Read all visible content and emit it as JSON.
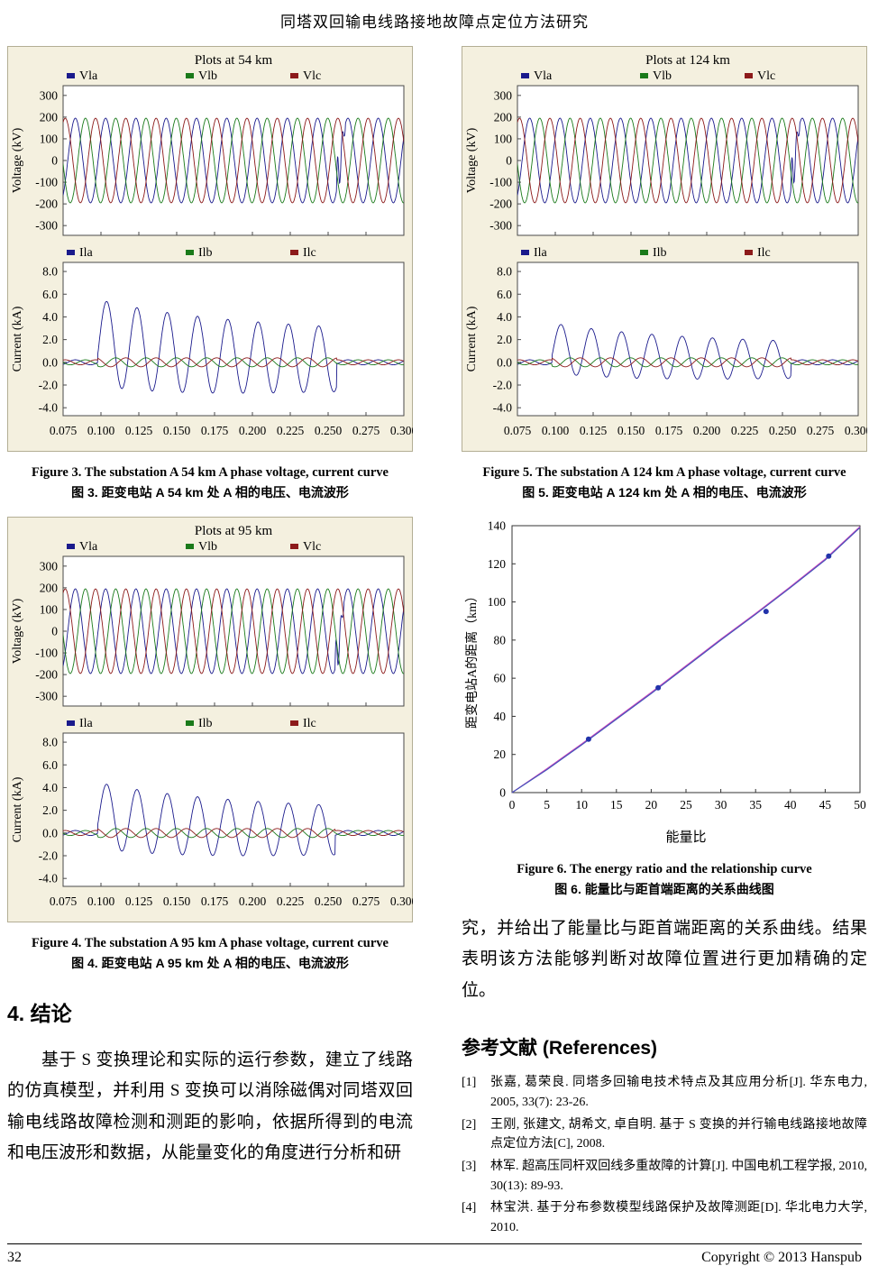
{
  "page": {
    "header_title": "同塔双回输电线路接地故障点定位方法研究",
    "footer": {
      "page_number": "32",
      "copyright": "Copyright © 2013 Hanspub"
    }
  },
  "figures": {
    "fig3": {
      "caption_en": "Figure 3. The substation A 54 km A phase voltage, current curve",
      "caption_zh": "图 3.  距变电站 A 54 km 处 A 相的电压、电流波形"
    },
    "fig4": {
      "caption_en": "Figure 4. The substation A 95 km A phase voltage, current curve",
      "caption_zh": "图 4.  距变电站 A 95 km 处 A 相的电压、电流波形"
    },
    "fig5": {
      "caption_en": "Figure 5. The substation A 124 km A phase voltage, current curve",
      "caption_zh": "图 5.  距变电站 A 124 km 处 A 相的电压、电流波形"
    },
    "fig6": {
      "caption_en": "Figure 6. The energy ratio and the relationship curve",
      "caption_zh": "图 6.  能量比与距首端距离的关系曲线图"
    }
  },
  "sections": {
    "conclusion": {
      "heading": "4. 结论",
      "paragraph_left": "基于 S 变换理论和实际的运行参数，建立了线路的仿真模型，并利用 S 变换可以消除磁偶对同塔双回输电线路故障检测和测距的影响，依据所得到的电流和电压波形和数据，从能量变化的角度进行分析和研",
      "paragraph_right": "究，并给出了能量比与距首端距离的关系曲线。结果表明该方法能够判断对故障位置进行更加精确的定位。"
    },
    "references": {
      "heading": "参考文献  (References)",
      "items": [
        {
          "label": "[1]",
          "text": "张嘉, 葛荣良. 同塔多回输电技术特点及其应用分析[J]. 华东电力, 2005, 33(7): 23-26."
        },
        {
          "label": "[2]",
          "text": "王刚, 张建文, 胡希文, 卓自明. 基于 S 变换的并行输电线路接地故障点定位方法[C], 2008."
        },
        {
          "label": "[3]",
          "text": "林军. 超高压同杆双回线多重故障的计算[J]. 中国电机工程学报, 2010, 30(13): 89-93."
        },
        {
          "label": "[4]",
          "text": "林宝洪. 基于分布参数模型线路保护及故障测距[D]. 华北电力大学, 2010."
        }
      ]
    }
  },
  "chart_data": [
    {
      "id": "fig3",
      "type": "line",
      "chart_kind": "waveform",
      "title": "Plots at 54 km",
      "background": "#f4f0df",
      "x_range": [
        0.075,
        0.3
      ],
      "x_tick_labels": [
        "0.075",
        "0.100",
        "0.125",
        "0.150",
        "0.175",
        "0.200",
        "0.225",
        "0.250",
        "0.275",
        "0.300"
      ],
      "panels": [
        {
          "ylabel": "Voltage (kV)",
          "ylim": [
            -345,
            345
          ],
          "yticks": [
            300,
            200,
            100,
            0,
            -100,
            -200,
            -300
          ],
          "ytick_labels": [
            "300",
            "200",
            "100",
            "0",
            "-100",
            "-200",
            "-300"
          ],
          "legend": [
            {
              "label": "Vla",
              "color": "#1a1a8c"
            },
            {
              "label": "Vlb",
              "color": "#1a7a1a"
            },
            {
              "label": "Vlc",
              "color": "#8c1a1a"
            }
          ],
          "signal": {
            "kind": "three_phase_voltage",
            "amplitude": 195,
            "frequency": 50,
            "spike_time": 0.2555,
            "spike_amp": 155
          }
        },
        {
          "ylabel": "Current (kA)",
          "ylim": [
            -4.7,
            8.8
          ],
          "yticks": [
            8,
            6,
            4,
            2,
            0,
            -2,
            -4
          ],
          "ytick_labels": [
            "8.0",
            "6.0",
            "4.0",
            "2.0",
            "0.0",
            "-2.0",
            "-4.0"
          ],
          "legend": [
            {
              "label": "Ila",
              "color": "#1a1a8c"
            },
            {
              "label": "Ilb",
              "color": "#1a7a1a"
            },
            {
              "label": "Ilc",
              "color": "#8c1a1a"
            }
          ],
          "signal": {
            "kind": "fault_current",
            "base_amplitude": 0.22,
            "fault_amplitude": 3.8,
            "dc_offset": 1.6,
            "fault_start": 0.098,
            "fault_end": 0.2555,
            "frequency": 50
          }
        }
      ]
    },
    {
      "id": "fig4",
      "type": "line",
      "chart_kind": "waveform",
      "title": "Plots at 95 km",
      "background": "#f4f0df",
      "x_range": [
        0.075,
        0.3
      ],
      "x_tick_labels": [
        "0.075",
        "0.100",
        "0.125",
        "0.150",
        "0.175",
        "0.200",
        "0.225",
        "0.250",
        "0.275",
        "0.300"
      ],
      "panels": [
        {
          "ylabel": "Voltage (kV)",
          "ylim": [
            -345,
            345
          ],
          "yticks": [
            300,
            200,
            100,
            0,
            -100,
            -200,
            -300
          ],
          "ytick_labels": [
            "300",
            "200",
            "100",
            "0",
            "-100",
            "-200",
            "-300"
          ],
          "legend": [
            {
              "label": "Vla",
              "color": "#1a1a8c"
            },
            {
              "label": "Vlb",
              "color": "#1a7a1a"
            },
            {
              "label": "Vlc",
              "color": "#8c1a1a"
            }
          ],
          "signal": {
            "kind": "three_phase_voltage",
            "amplitude": 195,
            "frequency": 50,
            "spike_time": 0.2545,
            "spike_amp": 140
          }
        },
        {
          "ylabel": "Current (kA)",
          "ylim": [
            -4.7,
            8.8
          ],
          "yticks": [
            8,
            6,
            4,
            2,
            0,
            -2,
            -4
          ],
          "ytick_labels": [
            "8.0",
            "6.0",
            "4.0",
            "2.0",
            "0.0",
            "-2.0",
            "-4.0"
          ],
          "legend": [
            {
              "label": "Ila",
              "color": "#1a1a8c"
            },
            {
              "label": "Ilb",
              "color": "#1a7a1a"
            },
            {
              "label": "Ilc",
              "color": "#8c1a1a"
            }
          ],
          "signal": {
            "kind": "fault_current",
            "base_amplitude": 0.22,
            "fault_amplitude": 2.9,
            "dc_offset": 1.4,
            "fault_start": 0.098,
            "fault_end": 0.2545,
            "frequency": 50
          }
        }
      ]
    },
    {
      "id": "fig5",
      "type": "line",
      "chart_kind": "waveform",
      "title": "Plots at 124 km",
      "background": "#f4f0df",
      "x_range": [
        0.075,
        0.3
      ],
      "x_tick_labels": [
        "0.075",
        "0.100",
        "0.125",
        "0.150",
        "0.175",
        "0.200",
        "0.225",
        "0.250",
        "0.275",
        "0.300"
      ],
      "panels": [
        {
          "ylabel": "Voltage (kV)",
          "ylim": [
            -345,
            345
          ],
          "yticks": [
            300,
            200,
            100,
            0,
            -100,
            -200,
            -300
          ],
          "ytick_labels": [
            "300",
            "200",
            "100",
            "0",
            "-100",
            "-200",
            "-300"
          ],
          "legend": [
            {
              "label": "Vla",
              "color": "#1a1a8c"
            },
            {
              "label": "Vlb",
              "color": "#1a7a1a"
            },
            {
              "label": "Vlc",
              "color": "#8c1a1a"
            }
          ],
          "signal": {
            "kind": "three_phase_voltage",
            "amplitude": 195,
            "frequency": 50,
            "spike_time": 0.2555,
            "spike_amp": 150
          }
        },
        {
          "ylabel": "Current (kA)",
          "ylim": [
            -4.7,
            8.8
          ],
          "yticks": [
            8,
            6,
            4,
            2,
            0,
            -2,
            -4
          ],
          "ytick_labels": [
            "8.0",
            "6.0",
            "4.0",
            "2.0",
            "0.0",
            "-2.0",
            "-4.0"
          ],
          "legend": [
            {
              "label": "Ila",
              "color": "#1a1a8c"
            },
            {
              "label": "Ilb",
              "color": "#1a7a1a"
            },
            {
              "label": "Ilc",
              "color": "#8c1a1a"
            }
          ],
          "signal": {
            "kind": "fault_current",
            "base_amplitude": 0.22,
            "fault_amplitude": 2.2,
            "dc_offset": 1.1,
            "fault_start": 0.098,
            "fault_end": 0.2555,
            "frequency": 50
          }
        }
      ]
    },
    {
      "id": "fig6",
      "type": "line",
      "chart_kind": "xy",
      "title": "",
      "xlabel": "能量比",
      "ylabel": "距变电站A的距离（km）",
      "xlim": [
        0,
        50
      ],
      "ylim": [
        0,
        140
      ],
      "xticks": [
        0,
        5,
        10,
        15,
        20,
        25,
        30,
        35,
        40,
        45,
        50
      ],
      "yticks": [
        0,
        20,
        40,
        60,
        80,
        100,
        120,
        140
      ],
      "series": [
        {
          "name": "relationship-curve-magenta",
          "color": "#cc44bb",
          "x": [
            0,
            5,
            10,
            15,
            20,
            25,
            30,
            35,
            40,
            45,
            50
          ],
          "y": [
            0,
            12.5,
            25.5,
            39,
            52.5,
            66.5,
            80.5,
            94,
            108,
            122.5,
            139.5
          ]
        },
        {
          "name": "relationship-curve-blue",
          "color": "#4455bb",
          "x": [
            0,
            5,
            10,
            15,
            20,
            25,
            30,
            35,
            40,
            45,
            50
          ],
          "y": [
            0,
            12,
            25,
            38.5,
            52,
            66,
            80,
            93.5,
            107.5,
            122,
            139
          ]
        }
      ],
      "markers": {
        "name": "sample-points",
        "color": "#2233aa",
        "points": [
          [
            11,
            28
          ],
          [
            21,
            55
          ],
          [
            36.5,
            95
          ],
          [
            45.5,
            124
          ]
        ]
      }
    }
  ]
}
